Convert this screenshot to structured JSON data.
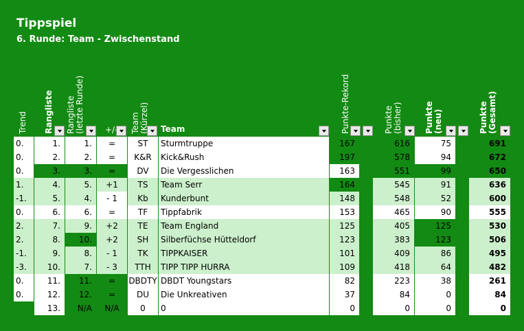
{
  "title": "Tippspiel",
  "subtitle": "6. Runde: Team - Zwischenstand",
  "headers": {
    "trend": "Trend",
    "rangliste": "Rangliste",
    "rangliste_prev_1": "Rangliste",
    "rangliste_prev_2": "(letzte Runde)",
    "plusminus": "+/-",
    "team_short_1": "Team",
    "team_short_2": "(Kürzel)",
    "team": "Team",
    "punkte_rekord": "Punkte-Rekord",
    "punkte_bisher_1": "Punkte",
    "punkte_bisher_2": "(bisher)",
    "punkte_neu_1": "Punkte",
    "punkte_neu_2": "(neu)",
    "punkte_gesamt_1": "Punkte",
    "punkte_gesamt_2": "(Gesamt)"
  },
  "colors": {
    "background": "#138a13",
    "white": "#ffffff",
    "light_green": "#ccf0cc",
    "dark_green": "#138a13"
  },
  "rows": [
    {
      "trend": "0.",
      "rank": "1.",
      "prev": "1.",
      "pm": "=",
      "short": "ST",
      "team": "Sturmtruppe",
      "rekord": "167",
      "bisher": "616",
      "neu": "75",
      "gesamt": "691"
    },
    {
      "trend": "0.",
      "rank": "2.",
      "prev": "2.",
      "pm": "=",
      "short": "K&R",
      "team": "Kick&Rush",
      "rekord": "197",
      "bisher": "578",
      "neu": "94",
      "gesamt": "672"
    },
    {
      "trend": "0.",
      "rank": "3.",
      "prev": "3.",
      "pm": "=",
      "short": "DV",
      "team": "Die Vergesslichen",
      "rekord": "163",
      "bisher": "551",
      "neu": "99",
      "gesamt": "650"
    },
    {
      "trend": "1.",
      "rank": "4.",
      "prev": "5.",
      "pm": "+1",
      "short": "TS",
      "team": "Team Serr",
      "rekord": "164",
      "bisher": "545",
      "neu": "91",
      "gesamt": "636"
    },
    {
      "trend": "-1.",
      "rank": "5.",
      "prev": "4.",
      "pm": "- 1",
      "short": "Kb",
      "team": "Kunderbunt",
      "rekord": "148",
      "bisher": "548",
      "neu": "52",
      "gesamt": "600"
    },
    {
      "trend": "0.",
      "rank": "6.",
      "prev": "6.",
      "pm": "=",
      "short": "TF",
      "team": "Tippfabrik",
      "rekord": "153",
      "bisher": "465",
      "neu": "90",
      "gesamt": "555"
    },
    {
      "trend": "2.",
      "rank": "7.",
      "prev": "9.",
      "pm": "+2",
      "short": "TE",
      "team": "Team England",
      "rekord": "125",
      "bisher": "405",
      "neu": "125",
      "gesamt": "530"
    },
    {
      "trend": "2.",
      "rank": "8.",
      "prev": "10.",
      "pm": "+2",
      "short": "SH",
      "team": "Silberfüchse Hütteldorf",
      "rekord": "123",
      "bisher": "383",
      "neu": "123",
      "gesamt": "506"
    },
    {
      "trend": "-1.",
      "rank": "9.",
      "prev": "8.",
      "pm": "- 1",
      "short": "TK",
      "team": "TIPPKAISER",
      "rekord": "101",
      "bisher": "409",
      "neu": "86",
      "gesamt": "495"
    },
    {
      "trend": "-3.",
      "rank": "10.",
      "prev": "7.",
      "pm": "- 3",
      "short": "TTH",
      "team": "TIPP TIPP HURRA",
      "rekord": "109",
      "bisher": "418",
      "neu": "64",
      "gesamt": "482"
    },
    {
      "trend": "0.",
      "rank": "11.",
      "prev": "11.",
      "pm": "=",
      "short": "DBDTY",
      "team": "DBDT Youngstars",
      "rekord": "82",
      "bisher": "223",
      "neu": "38",
      "gesamt": "261"
    },
    {
      "trend": "0.",
      "rank": "12.",
      "prev": "12.",
      "pm": "=",
      "short": "DU",
      "team": "Die Unkreativen",
      "rekord": "37",
      "bisher": "84",
      "neu": "0",
      "gesamt": "84"
    },
    {
      "trend": "",
      "rank": "13.",
      "prev": "N/A",
      "pm": "N/A",
      "short": "0",
      "team": "0",
      "rekord": "0",
      "bisher": "0",
      "neu": "0",
      "gesamt": "0"
    }
  ]
}
